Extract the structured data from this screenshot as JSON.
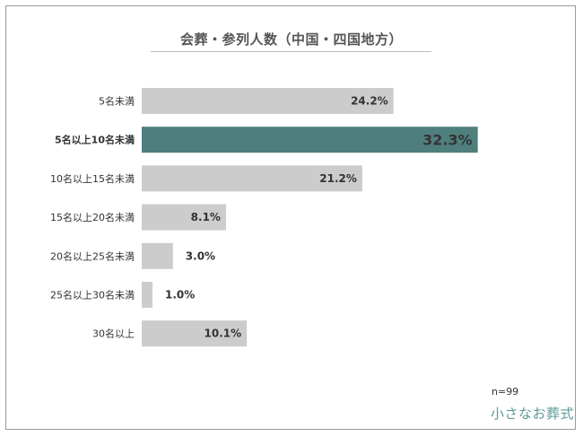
{
  "chart_data": {
    "type": "bar",
    "orientation": "horizontal",
    "title": "会葬・参列人数（中国・四国地方）",
    "categories": [
      "5名未満",
      "5名以上10名未満",
      "10名以上15名未満",
      "15名以上20名未満",
      "20名以上25名未満",
      "25名以上30名未満",
      "30名以上"
    ],
    "values": [
      24.2,
      32.3,
      21.2,
      8.1,
      3.0,
      1.0,
      10.1
    ],
    "value_labels": [
      "24.2%",
      "32.3%",
      "21.2%",
      "8.1%",
      "3.0%",
      "1.0%",
      "10.1%"
    ],
    "unit": "%",
    "highlight_index": 1,
    "colors": {
      "bar": "#cccccc",
      "highlight": "#4f7f7d",
      "label": "#333333",
      "highlight_label": "#ffffff"
    },
    "grid": false,
    "legend": "none"
  },
  "footer": {
    "sample_size": "n=99",
    "logo": "小さなお葬式"
  }
}
